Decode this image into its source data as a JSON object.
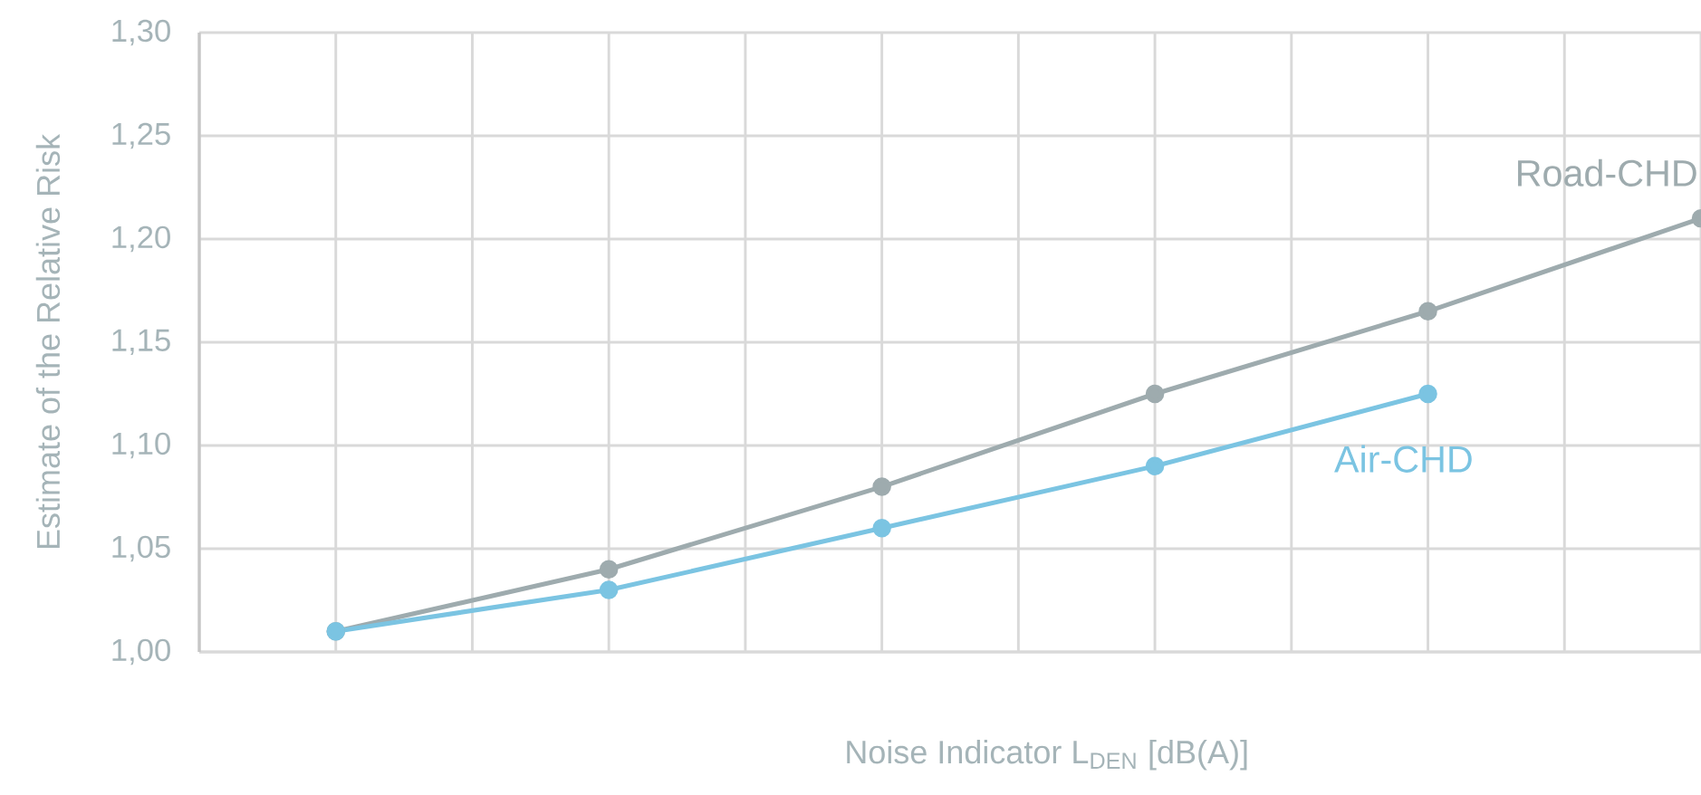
{
  "chart_data": {
    "type": "line",
    "xlabel": "Noise Indicator L$_{DEN}$ [dB(A)]",
    "ylabel": "Estimate of the Relative Risk",
    "categories": [
      null,
      null,
      null,
      null,
      null,
      null
    ],
    "series": [
      {
        "name": "Road-CHD",
        "color": "#9eabae",
        "values": [
          1.01,
          1.04,
          1.08,
          1.125,
          1.165,
          1.21
        ]
      },
      {
        "name": "Air-CHD",
        "color": "#7bc4e2",
        "values": [
          1.01,
          1.03,
          1.06,
          1.09,
          1.125,
          null
        ]
      }
    ],
    "ylim": [
      1.0,
      1.3
    ],
    "yticks": [
      {
        "value": 1.0,
        "label": "1,00"
      },
      {
        "value": 1.05,
        "label": "1,05"
      },
      {
        "value": 1.1,
        "label": "1,10"
      },
      {
        "value": 1.15,
        "label": "1,15"
      },
      {
        "value": 1.2,
        "label": "1,20"
      },
      {
        "value": 1.25,
        "label": "1,25"
      },
      {
        "value": 1.3,
        "label": "1,30"
      }
    ],
    "tick_labels": "y",
    "grid": true,
    "marker": "circle",
    "line_style": "solid"
  }
}
